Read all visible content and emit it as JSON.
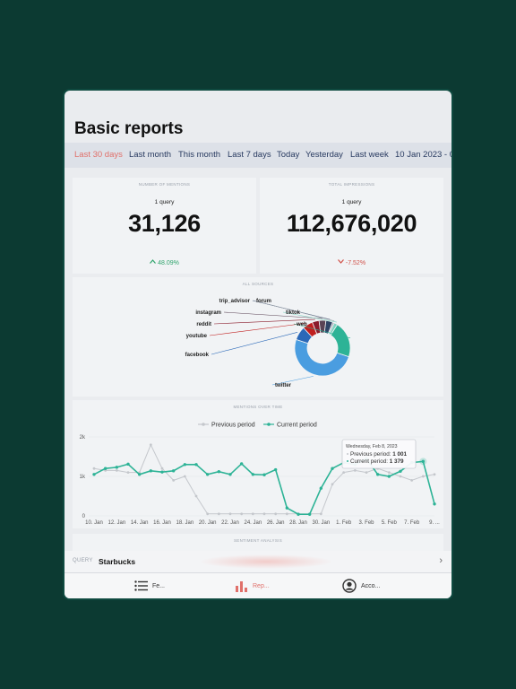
{
  "page": {
    "title": "Basic reports"
  },
  "tabs": [
    {
      "label": "Last 30 days",
      "active": true
    },
    {
      "label": "Last month",
      "active": false
    },
    {
      "label": "This month",
      "active": false
    },
    {
      "label": "Last 7 days",
      "active": false
    },
    {
      "label": "Today",
      "active": false
    },
    {
      "label": "Yesterday",
      "active": false
    },
    {
      "label": "Last week",
      "active": false
    },
    {
      "label": "10 Jan 2023 - 0",
      "active": false
    }
  ],
  "mentions": {
    "title": "NUMBER OF MENTIONS",
    "query_count": "1 query",
    "value": "31,126",
    "delta": "48.09%",
    "delta_direction": "up"
  },
  "impressions": {
    "title": "TOTAL IMPRESSIONS",
    "query_count": "1 query",
    "value": "112,676,020",
    "delta": "-7.52%",
    "delta_direction": "down"
  },
  "sources": {
    "title": "ALL SOURCES"
  },
  "mentions_chart": {
    "title": "MENTIONS OVER TIME",
    "legend_previous": "Previous period",
    "legend_current": "Current period"
  },
  "tooltip": {
    "date": "Wednesday, Feb 8, 2023",
    "previous_label": "Previous period:",
    "previous_value": "1 001",
    "current_label": "Current period:",
    "current_value": "1 379"
  },
  "sentiment": {
    "title": "SENTIMENT ANALYSIS"
  },
  "query": {
    "label": "QUERY",
    "value": "Starbucks"
  },
  "nav": [
    {
      "label": "Fe...",
      "icon": "list-icon",
      "active": false
    },
    {
      "label": "Rep...",
      "icon": "bar-chart-icon",
      "active": true
    },
    {
      "label": "Acco...",
      "icon": "account-icon",
      "active": false
    }
  ],
  "colors": {
    "accent": "#e0706a",
    "current_series": "#2db396",
    "previous_series": "#c4c7cc",
    "tab_text": "#283a60"
  },
  "chart_data": [
    {
      "type": "pie",
      "title": "ALL SOURCES",
      "categories": [
        "twitter",
        "facebook",
        "youtube",
        "reddit",
        "instagram",
        "trip_advisor",
        "forum",
        "tiktok",
        "web"
      ],
      "values": [
        50,
        8,
        6,
        4,
        4,
        4,
        1,
        2,
        21
      ],
      "colors": [
        "#4a9de0",
        "#2a68b8",
        "#c01f1f",
        "#8a1c2c",
        "#5a4355",
        "#2f4466",
        "#9aa1ab",
        "#7fd2c0",
        "#2db396"
      ]
    },
    {
      "type": "line",
      "title": "MENTIONS OVER TIME",
      "x": [
        "10. Jan",
        "11. Jan",
        "12. Jan",
        "13. Jan",
        "14. Jan",
        "15. Jan",
        "16. Jan",
        "17. Jan",
        "18. Jan",
        "19. Jan",
        "20. Jan",
        "21. Jan",
        "22. Jan",
        "23. Jan",
        "24. Jan",
        "25. Jan",
        "26. Jan",
        "27. Jan",
        "28. Jan",
        "29. Jan",
        "30. Jan",
        "31. Jan",
        "1. Feb",
        "2. Feb",
        "3. Feb",
        "4. Feb",
        "5. Feb",
        "6. Feb",
        "7. Feb",
        "8. Feb",
        "9. Feb"
      ],
      "tick_labels": [
        "10. Jan",
        "12. Jan",
        "14. Jan",
        "16. Jan",
        "18. Jan",
        "20. Jan",
        "22. Jan",
        "24. Jan",
        "26. Jan",
        "28. Jan",
        "30. Jan",
        "1. Feb",
        "3. Feb",
        "5. Feb",
        "7. Feb",
        "9. ..."
      ],
      "series": [
        {
          "name": "Previous period",
          "values": [
            1200,
            1150,
            1150,
            1100,
            1100,
            1800,
            1200,
            900,
            1000,
            500,
            50,
            50,
            50,
            50,
            50,
            50,
            50,
            50,
            50,
            50,
            50,
            800,
            1100,
            1150,
            1100,
            1200,
            1100,
            1000,
            900,
            1001,
            1050
          ]
        },
        {
          "name": "Current period",
          "values": [
            1050,
            1200,
            1230,
            1310,
            1050,
            1140,
            1110,
            1140,
            1300,
            1300,
            1050,
            1120,
            1050,
            1320,
            1050,
            1040,
            1170,
            200,
            40,
            40,
            700,
            1200,
            1350,
            1300,
            1450,
            1050,
            1000,
            1130,
            1350,
            1379,
            300
          ]
        }
      ],
      "ylim": [
        0,
        2000
      ],
      "yticks": [
        "0",
        "1k",
        "2k"
      ]
    }
  ]
}
